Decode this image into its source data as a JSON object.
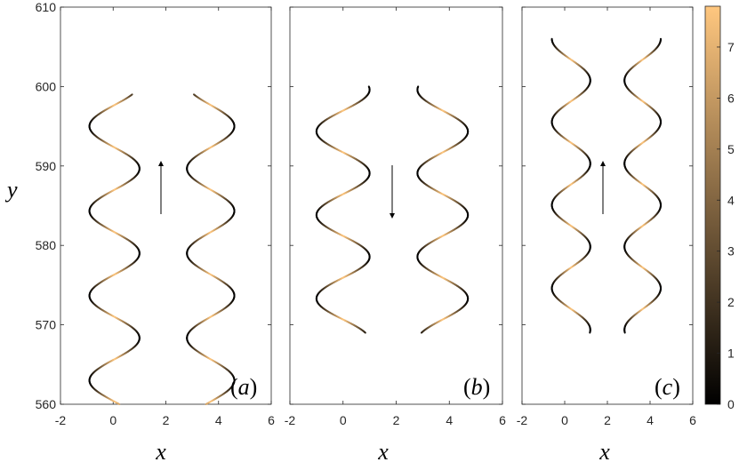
{
  "chart_data": [
    {
      "type": "line",
      "panel_label_open": "(",
      "panel_label_letter": "a",
      "panel_label_close": ")",
      "xlabel": "x",
      "ylabel": "y",
      "xlim": [
        -2,
        6
      ],
      "ylim": [
        560,
        610
      ],
      "xticks": [
        "-2",
        "0",
        "2",
        "4",
        "6"
      ],
      "yticks": [
        "560",
        "570",
        "580",
        "590",
        "600",
        "610"
      ],
      "arrow": {
        "x": 1.8,
        "y_from": 584,
        "y_to": 590.5,
        "direction": "up"
      },
      "series": [
        {
          "x_range": [
            -0.9,
            1.0
          ],
          "y_range": [
            560,
            599
          ],
          "extreme_y": [
            563,
            568.3,
            573.6,
            579,
            584.3,
            589.7,
            595
          ]
        },
        {
          "x_range": [
            2.8,
            4.6
          ],
          "y_range": [
            560,
            599
          ],
          "extreme_y": [
            563,
            568.3,
            573.6,
            579,
            584.3,
            589.7,
            595
          ]
        }
      ]
    },
    {
      "type": "line",
      "panel_label_open": "(",
      "panel_label_letter": "b",
      "panel_label_close": ")",
      "xlabel": "x",
      "xlim": [
        -2,
        6
      ],
      "ylim": [
        560,
        610
      ],
      "xticks": [
        "-2",
        "0",
        "2",
        "4",
        "6"
      ],
      "arrow": {
        "x": 1.8,
        "y_from": 590,
        "y_to": 583.5,
        "direction": "down"
      },
      "series": [
        {
          "x_range": [
            -1.0,
            1.0
          ],
          "y_range": [
            569,
            600
          ],
          "extreme_y": [
            573.3,
            578.4,
            584,
            589.8,
            595.2,
            599.6
          ]
        },
        {
          "x_range": [
            2.8,
            4.7
          ],
          "y_range": [
            569,
            600
          ],
          "extreme_y": [
            573.3,
            578.4,
            584,
            589.8,
            595.2,
            599.6
          ]
        }
      ]
    },
    {
      "type": "line",
      "panel_label_open": "(",
      "panel_label_letter": "c",
      "panel_label_close": ")",
      "xlabel": "x",
      "xlim": [
        -2,
        6
      ],
      "ylim": [
        560,
        610
      ],
      "xticks": [
        "-2",
        "0",
        "2",
        "4",
        "6"
      ],
      "arrow": {
        "x": 1.8,
        "y_from": 584,
        "y_to": 590.5,
        "direction": "up"
      },
      "series": [
        {
          "x_range": [
            -0.6,
            1.2
          ],
          "y_range": [
            569,
            606
          ],
          "extreme_y": [
            574.6,
            580.1,
            585.6,
            590.9,
            596.2,
            601.3,
            606
          ]
        },
        {
          "x_range": [
            2.8,
            4.5
          ],
          "y_range": [
            569,
            606
          ],
          "extreme_y": [
            574.6,
            580.1,
            585.6,
            590.9,
            596.2,
            601.3,
            606
          ]
        }
      ]
    }
  ],
  "colorbar": {
    "range": [
      0,
      7.8
    ],
    "ticks": [
      "0",
      "1",
      "2",
      "3",
      "4",
      "5",
      "6",
      "7"
    ],
    "colors": [
      "#000000",
      "#ffc77f"
    ]
  }
}
